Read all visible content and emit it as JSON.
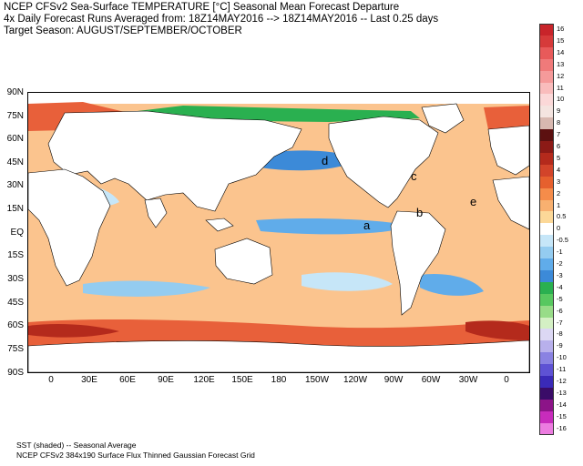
{
  "header": {
    "line1": "NCEP CFSv2 Sea-Surface TEMPERATURE [°C] Seasonal Mean Forecast Departure",
    "line2": "4x Daily Forecast Runs Averaged from: 18Z14MAY2016 --> 18Z14MAY2016 -- Last 0.25 days",
    "line3": "Target Season: AUGUST/SEPTEMBER/OCTOBER"
  },
  "axes": {
    "lat_labels": [
      "90N",
      "75N",
      "60N",
      "45N",
      "30N",
      "15N",
      "EQ",
      "15S",
      "30S",
      "45S",
      "60S",
      "75S",
      "90S"
    ],
    "lon_labels": [
      "0",
      "30E",
      "60E",
      "90E",
      "120E",
      "150E",
      "180",
      "150W",
      "120W",
      "90W",
      "60W",
      "30W",
      "0"
    ]
  },
  "region_markers": [
    "a",
    "b",
    "c",
    "d",
    "e"
  ],
  "colorbar": {
    "labels": [
      "16",
      "15",
      "14",
      "13",
      "12",
      "11",
      "10",
      "9",
      "8",
      "7",
      "6",
      "5",
      "4",
      "3",
      "2",
      "1",
      "0.5",
      "0",
      "-0.5",
      "-1",
      "-2",
      "-3",
      "-4",
      "-5",
      "-6",
      "-7",
      "-8",
      "-9",
      "-10",
      "-11",
      "-12",
      "-13",
      "-14",
      "-15",
      "-16"
    ],
    "colors": [
      "#c8242a",
      "#d63a3a",
      "#e85a5a",
      "#f07a7a",
      "#f59a9a",
      "#f9bcbc",
      "#fbd8d8",
      "#f4e4e0",
      "#d8b8b0",
      "#5c1010",
      "#8c1a16",
      "#b42a1c",
      "#d2442a",
      "#e6602e",
      "#f58c4a",
      "#f8b070",
      "#fcd898",
      "#ffffff",
      "#c6e6f8",
      "#94ccf0",
      "#60acea",
      "#3c8ad8",
      "#2ab050",
      "#58c860",
      "#98dc88",
      "#d4f0c4",
      "#dcd8f4",
      "#b8b0ec",
      "#8a82e2",
      "#5e52d4",
      "#3a2ab8",
      "#3a0c68",
      "#8c1488",
      "#c82cbc",
      "#ec7ce0"
    ]
  },
  "footer": {
    "line1": "SST (shaded) -- Seasonal Average",
    "line2": "NCEP CFSv2 384x190 Surface Flux Thinned Gaussian Forecast Grid"
  }
}
